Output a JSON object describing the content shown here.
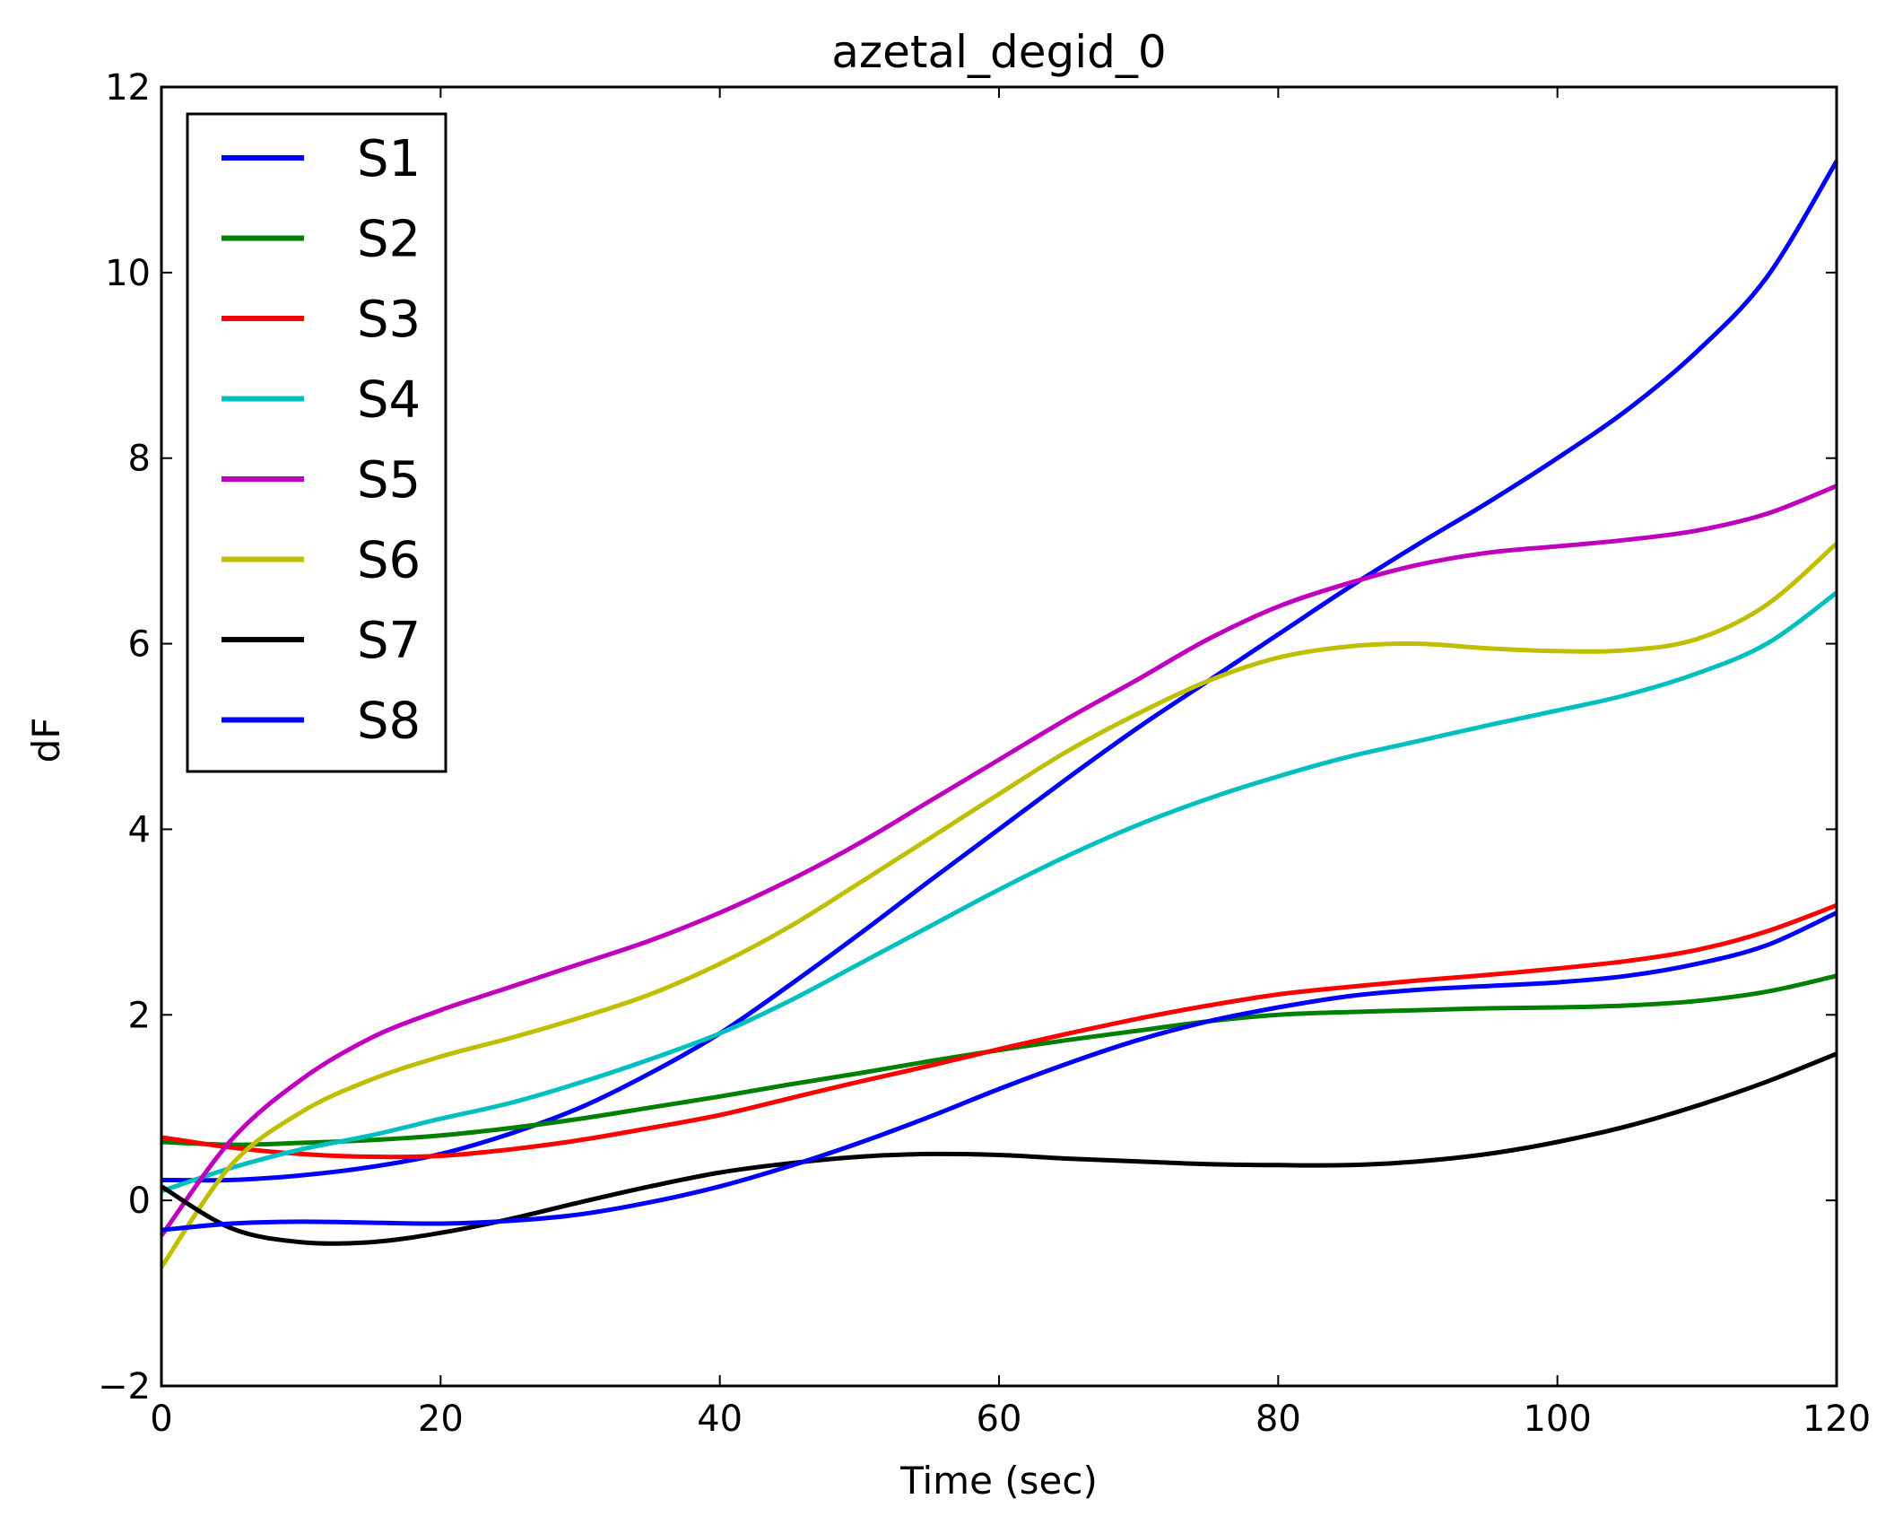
{
  "chart_data": {
    "type": "line",
    "title": "azetal_degid_0",
    "xlabel": "Time (sec)",
    "ylabel": "dF",
    "xlim": [
      0,
      120
    ],
    "ylim": [
      -2,
      12
    ],
    "x_ticks": [
      "0",
      "20",
      "40",
      "60",
      "80",
      "100",
      "120"
    ],
    "y_ticks": [
      "−2",
      "0",
      "2",
      "4",
      "6",
      "8",
      "10",
      "12"
    ],
    "x_tick_values": [
      0,
      20,
      40,
      60,
      80,
      100,
      120
    ],
    "y_tick_values": [
      -2,
      0,
      2,
      4,
      6,
      8,
      10,
      12
    ],
    "grid": false,
    "legend_position": "top-left",
    "x": [
      0,
      5,
      10,
      15,
      20,
      25,
      30,
      35,
      40,
      45,
      50,
      55,
      60,
      65,
      70,
      75,
      80,
      85,
      90,
      95,
      100,
      105,
      110,
      115,
      120
    ],
    "series": [
      {
        "name": "S1",
        "color": "#0000ff",
        "values": [
          0.22,
          0.22,
          0.27,
          0.36,
          0.5,
          0.72,
          1.0,
          1.37,
          1.8,
          2.32,
          2.87,
          3.44,
          4.0,
          4.56,
          5.1,
          5.6,
          6.1,
          6.6,
          7.07,
          7.52,
          8.0,
          8.52,
          9.15,
          9.95,
          11.2
        ]
      },
      {
        "name": "S2",
        "color": "#008000",
        "values": [
          0.63,
          0.6,
          0.62,
          0.65,
          0.7,
          0.78,
          0.88,
          1.0,
          1.12,
          1.25,
          1.37,
          1.5,
          1.62,
          1.73,
          1.83,
          1.93,
          2.0,
          2.03,
          2.05,
          2.07,
          2.08,
          2.1,
          2.15,
          2.25,
          2.42
        ]
      },
      {
        "name": "S3",
        "color": "#ff0000",
        "values": [
          0.68,
          0.57,
          0.5,
          0.47,
          0.48,
          0.55,
          0.65,
          0.78,
          0.92,
          1.1,
          1.28,
          1.45,
          1.63,
          1.8,
          1.96,
          2.1,
          2.22,
          2.3,
          2.37,
          2.43,
          2.5,
          2.58,
          2.7,
          2.9,
          3.18
        ]
      },
      {
        "name": "S4",
        "color": "#00bfbf",
        "values": [
          0.1,
          0.35,
          0.55,
          0.7,
          0.88,
          1.05,
          1.27,
          1.52,
          1.8,
          2.15,
          2.55,
          2.95,
          3.35,
          3.72,
          4.05,
          4.33,
          4.57,
          4.78,
          4.95,
          5.12,
          5.28,
          5.45,
          5.68,
          6.0,
          6.55
        ]
      },
      {
        "name": "S5",
        "color": "#bf00bf",
        "values": [
          -0.38,
          0.65,
          1.3,
          1.75,
          2.05,
          2.3,
          2.55,
          2.8,
          3.1,
          3.45,
          3.85,
          4.3,
          4.75,
          5.2,
          5.62,
          6.05,
          6.4,
          6.65,
          6.85,
          6.98,
          7.05,
          7.12,
          7.22,
          7.4,
          7.7
        ]
      },
      {
        "name": "S6",
        "color": "#bfbf00",
        "values": [
          -0.72,
          0.38,
          0.95,
          1.3,
          1.55,
          1.75,
          1.97,
          2.22,
          2.55,
          2.95,
          3.42,
          3.9,
          4.38,
          4.85,
          5.25,
          5.6,
          5.85,
          5.97,
          6.0,
          5.95,
          5.92,
          5.93,
          6.05,
          6.42,
          7.08
        ]
      },
      {
        "name": "S7",
        "color": "#000000",
        "values": [
          0.15,
          -0.3,
          -0.45,
          -0.45,
          -0.35,
          -0.2,
          -0.02,
          0.15,
          0.3,
          0.4,
          0.47,
          0.5,
          0.49,
          0.45,
          0.42,
          0.39,
          0.38,
          0.38,
          0.42,
          0.5,
          0.63,
          0.8,
          1.02,
          1.28,
          1.58
        ]
      },
      {
        "name": "S8",
        "color": "#0000ff",
        "values": [
          -0.32,
          -0.25,
          -0.23,
          -0.24,
          -0.25,
          -0.22,
          -0.15,
          -0.02,
          0.15,
          0.37,
          0.62,
          0.9,
          1.2,
          1.48,
          1.73,
          1.93,
          2.08,
          2.2,
          2.27,
          2.31,
          2.35,
          2.42,
          2.55,
          2.75,
          3.1
        ]
      }
    ]
  }
}
